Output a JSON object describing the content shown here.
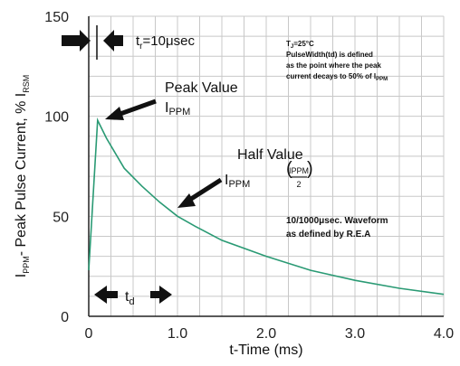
{
  "chart_data": {
    "type": "line",
    "xlabel": "t-Time (ms)",
    "ylabel_main": "I",
    "ylabel_main_sub": "PPM",
    "ylabel_rest": "- Peak Pulse Current, % I",
    "ylabel_rest_sub": "RSM",
    "xlim": [
      0,
      4.0
    ],
    "ylim": [
      0,
      150
    ],
    "x_ticks": [
      "0",
      "1.0",
      "2.0",
      "3.0",
      "4.0"
    ],
    "y_ticks": [
      "0",
      "50",
      "100",
      "150"
    ],
    "grid": true,
    "series": [
      {
        "x": [
          0,
          0.1,
          0.2,
          0.4,
          0.6,
          0.8,
          1.0,
          1.2,
          1.5,
          2.0,
          2.5,
          3.0,
          3.5,
          4.0
        ],
        "y": [
          23,
          98,
          89,
          74,
          65,
          57,
          50,
          45,
          38,
          30,
          23,
          18,
          14,
          11
        ]
      }
    ],
    "annotations": {
      "tr_label": "t",
      "tr_sub": "r",
      "tr_value": "=10μsec",
      "peak_label": "Peak Value",
      "peak_i": "I",
      "peak_sub": "PPM",
      "half_label": "Half Value",
      "half_i": "I",
      "half_sub": "PPM",
      "half_frac_num": "IPPM",
      "half_frac_den": "2",
      "conditions_line1": "T",
      "conditions_line1_sub": "J",
      "conditions_line1_rest": "=25°C",
      "conditions_line2": "PulseWidth(td) is defined",
      "conditions_line3": "as the point where the peak",
      "conditions_line4": "current decays to 50% of I",
      "conditions_line4_sub": "PPM",
      "waveform_line1": "10/1000μsec. Waveform",
      "waveform_line2": "as defined by R.E.A",
      "td_label": "t",
      "td_sub": "d"
    },
    "colors": {
      "curve": "#2a9a74",
      "grid": "#c8c8c8",
      "axis": "#222222"
    }
  }
}
